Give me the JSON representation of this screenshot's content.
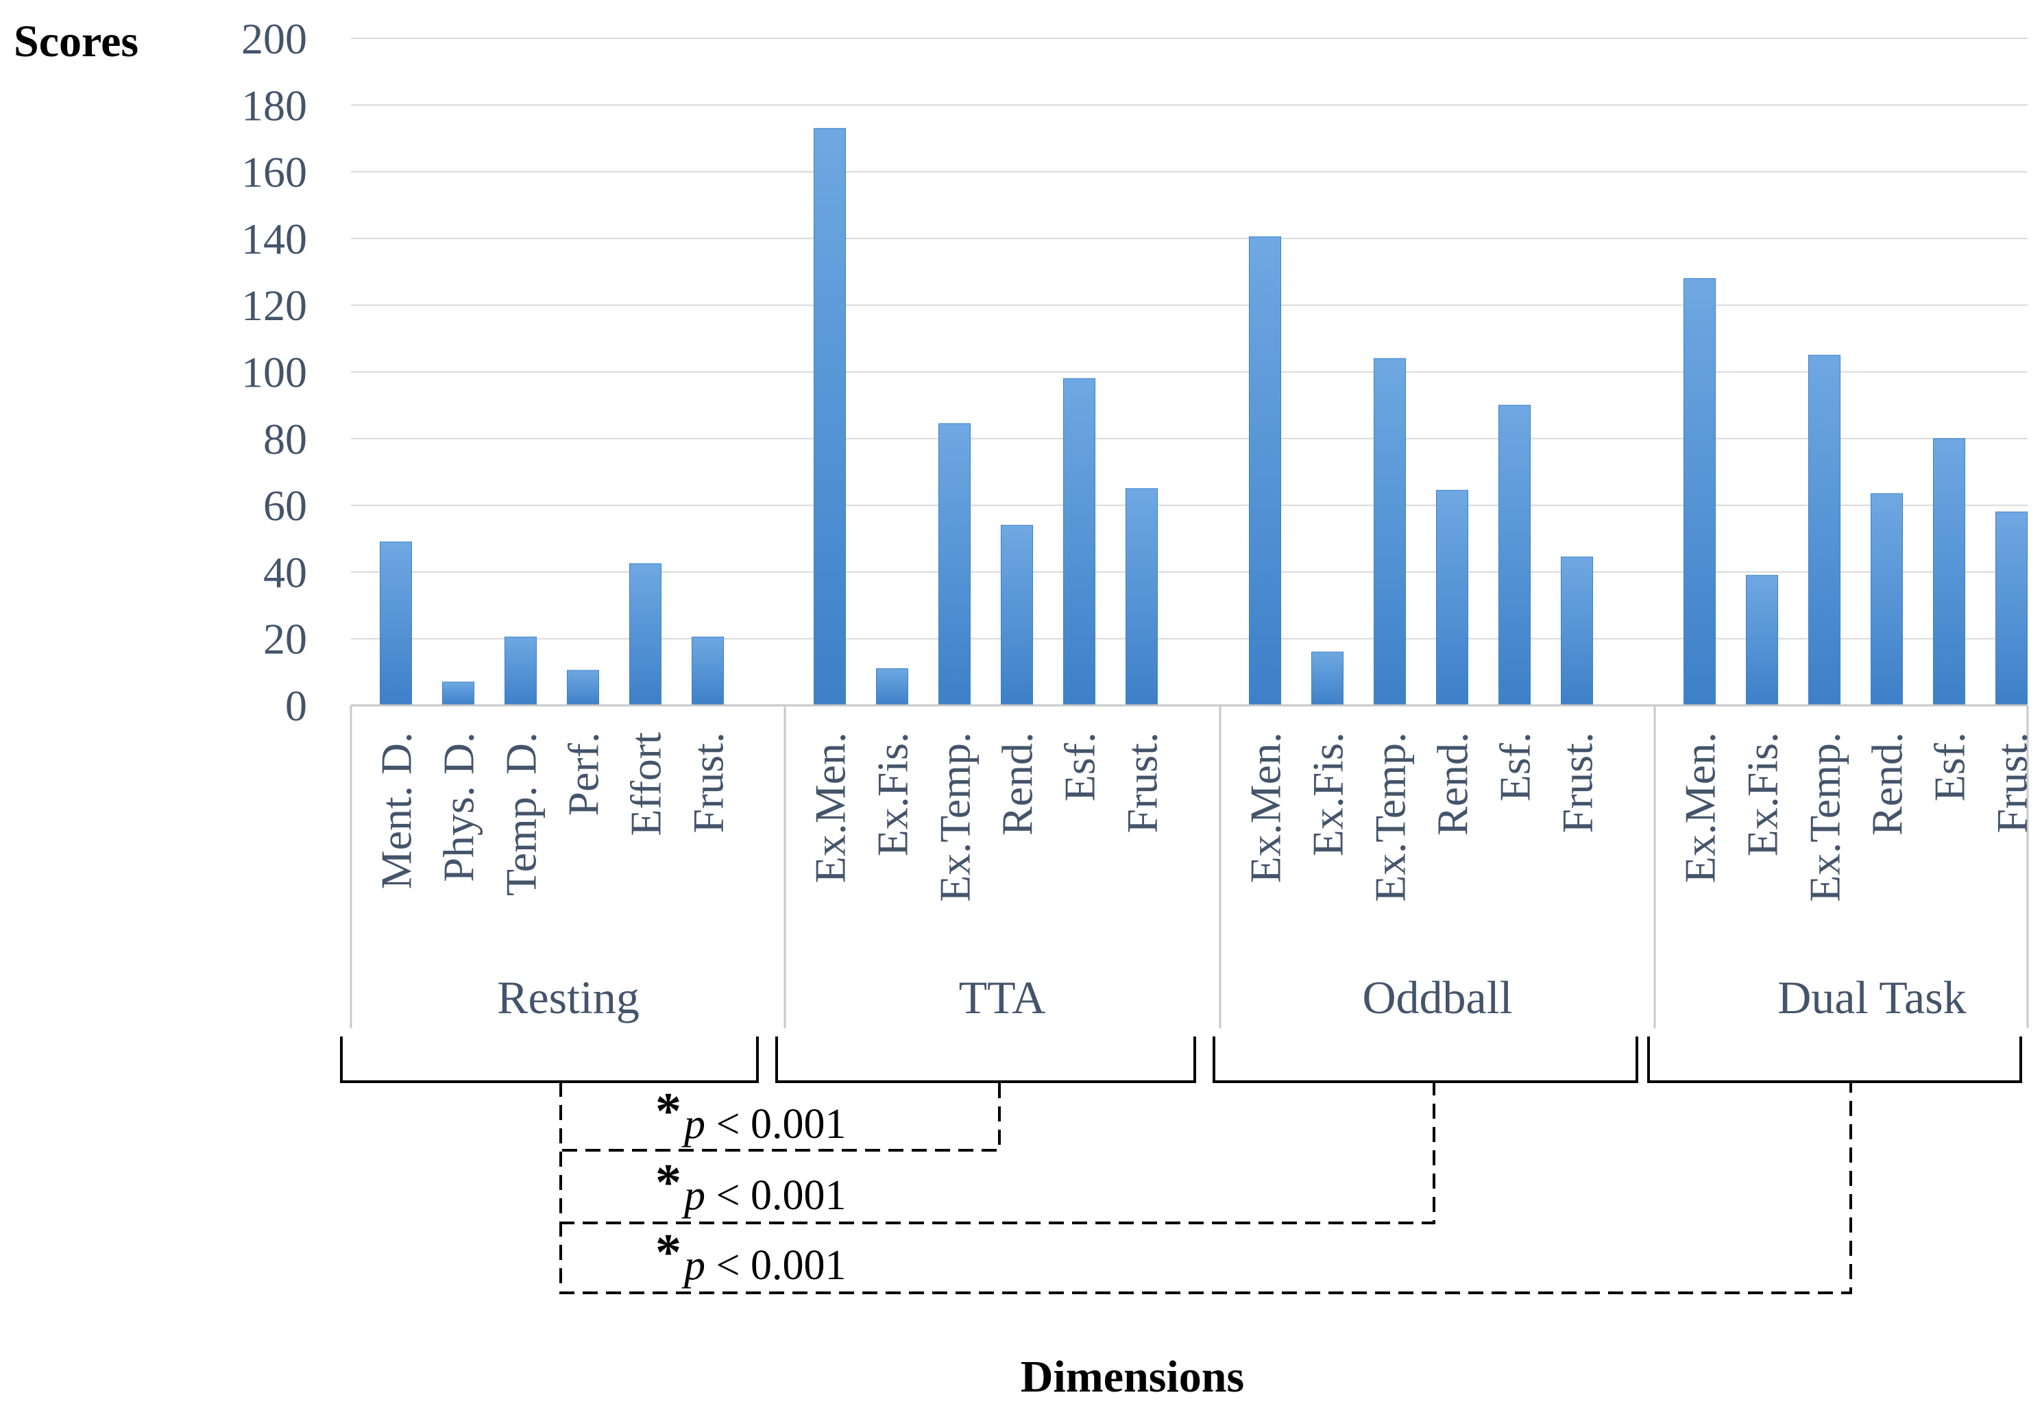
{
  "chart_data": {
    "type": "bar",
    "ylabel": "Scores",
    "xlabel": "Dimensions",
    "ylim": [
      0,
      200
    ],
    "yticks": [
      "0",
      "20",
      "40",
      "60",
      "80",
      "100",
      "120",
      "140",
      "160",
      "180",
      "200"
    ],
    "grid": true,
    "colors": {
      "bar": "#4a8fd6",
      "bar_light": "#6fa8e2",
      "bar_dark": "#3d80c8",
      "grid": "#d9d9d9",
      "axis": "#c8c8c8",
      "bracket": "#000000"
    },
    "groups": [
      {
        "name": "Resting",
        "categories": [
          "Ment. D.",
          "Phys. D.",
          "Temp. D.",
          "Perf.",
          "Effort",
          "Frust."
        ],
        "values": [
          49,
          7,
          20.5,
          10.5,
          42.5,
          20.5
        ]
      },
      {
        "name": "TTA",
        "categories": [
          "Ex.Men.",
          "Ex.Fis.",
          "Ex.Temp.",
          "Rend.",
          "Esf.",
          "Frust."
        ],
        "values": [
          173,
          11,
          84.5,
          54,
          98,
          65
        ]
      },
      {
        "name": "Oddball",
        "categories": [
          "Ex.Men.",
          "Ex.Fis.",
          "Ex.Temp.",
          "Rend.",
          "Esf.",
          "Frust."
        ],
        "values": [
          140.5,
          16,
          104,
          64.5,
          90,
          44.5
        ]
      },
      {
        "name": "Dual Task",
        "categories": [
          "Ex.Men.",
          "Ex.Fis.",
          "Ex.Temp.",
          "Rend.",
          "Esf.",
          "Frust."
        ],
        "values": [
          128,
          39,
          105,
          63.5,
          80,
          58
        ]
      }
    ],
    "annotations": [
      {
        "star": "*",
        "text": "p < 0.001",
        "from": "Resting",
        "to": "TTA"
      },
      {
        "star": "*",
        "text": "p < 0.001",
        "from": "Resting",
        "to": "Oddball"
      },
      {
        "star": "*",
        "text": "p < 0.001",
        "from": "Resting",
        "to": "Dual Task"
      }
    ]
  }
}
